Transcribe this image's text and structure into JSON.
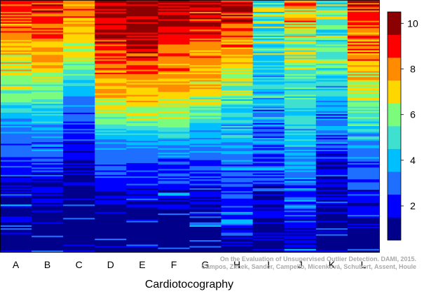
{
  "chart_data": {
    "type": "heatmap",
    "title": "",
    "xlabel": "Cardiotocography",
    "ylabel": "",
    "columns": [
      "A",
      "B",
      "C",
      "D",
      "E",
      "F",
      "G",
      "H",
      "I",
      "J",
      "K",
      "L"
    ],
    "rows_approx": 170,
    "value_range": [
      0.5,
      10.5
    ],
    "colorbar": {
      "ticks": [
        2,
        4,
        6,
        8,
        10
      ],
      "colors": [
        "#00008b",
        "#0000ff",
        "#1e6eff",
        "#00bfff",
        "#40e0d0",
        "#7cfc7c",
        "#ffd700",
        "#ff8c00",
        "#ff0000",
        "#8b0000"
      ]
    },
    "column_profiles": [
      {
        "name": "A",
        "start": 8.6,
        "d1": 0.4,
        "p1": 1.3,
        "d2": 0.35,
        "p2": 1.6,
        "noise": 1.1,
        "shift": 0.3
      },
      {
        "name": "B",
        "start": 9.0,
        "d1": 0.4,
        "p1": 1.3,
        "d2": 0.35,
        "p2": 1.6,
        "noise": 1.1,
        "shift": 0.3
      },
      {
        "name": "C",
        "start": 8.7,
        "d1": 0.3,
        "p1": 1.0,
        "d2": 0.35,
        "p2": 2.0,
        "noise": 0.9,
        "shift": 0.3
      },
      {
        "name": "D",
        "start": 9.7,
        "d1": 0.5,
        "p1": 1.7,
        "d2": 0.3,
        "p2": 1.9,
        "noise": 0.9,
        "shift": 0.2
      },
      {
        "name": "E",
        "start": 10.1,
        "d1": 0.5,
        "p1": 1.7,
        "d2": 0.3,
        "p2": 1.9,
        "noise": 0.9,
        "shift": 0.2
      },
      {
        "name": "F",
        "start": 9.6,
        "d1": 0.5,
        "p1": 1.6,
        "d2": 0.3,
        "p2": 1.9,
        "noise": 1.0,
        "shift": 0.2
      },
      {
        "name": "G",
        "start": 9.7,
        "d1": 0.45,
        "p1": 1.3,
        "d2": 0.35,
        "p2": 1.7,
        "noise": 1.1,
        "shift": 0.3
      },
      {
        "name": "H",
        "start": 9.6,
        "d1": 0.4,
        "p1": 1.0,
        "d2": 0.55,
        "p2": 1.5,
        "noise": 1.3,
        "shift": 0.4
      },
      {
        "name": "I",
        "start": 5.3,
        "d1": 0.2,
        "p1": 1.0,
        "d2": 0.65,
        "p2": 1.2,
        "noise": 2.1,
        "shift": 0.2
      },
      {
        "name": "J",
        "start": 7.6,
        "d1": 0.3,
        "p1": 1.0,
        "d2": 0.7,
        "p2": 1.1,
        "noise": 1.6,
        "shift": 0.4
      },
      {
        "name": "K",
        "start": 5.6,
        "d1": 0.25,
        "p1": 1.0,
        "d2": 0.5,
        "p2": 1.3,
        "noise": 1.5,
        "shift": 0.2
      },
      {
        "name": "L",
        "start": 9.3,
        "d1": 0.45,
        "p1": 1.4,
        "d2": 0.4,
        "p2": 1.5,
        "noise": 1.3,
        "shift": 0.3
      }
    ]
  },
  "watermark": {
    "line1": "On the Evaluation of Unsupervised Outlier Detection. DAMI, 2015.",
    "line2": "Campos, Zimek, Sander, Campello, Micenková, Schubert, Assent, Houle"
  }
}
